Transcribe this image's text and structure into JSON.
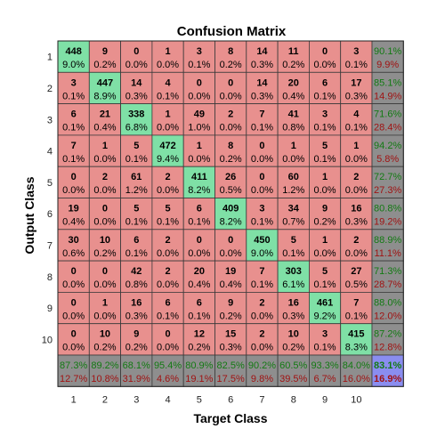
{
  "chart_data": {
    "type": "heatmap",
    "title": "Confusion Matrix",
    "xlabel": "Target Class",
    "ylabel": "Output Class",
    "classes": [
      "1",
      "2",
      "3",
      "4",
      "5",
      "6",
      "7",
      "8",
      "9",
      "10"
    ],
    "counts": [
      [
        448,
        9,
        0,
        1,
        3,
        8,
        14,
        11,
        0,
        3
      ],
      [
        3,
        447,
        14,
        4,
        0,
        0,
        14,
        20,
        6,
        17
      ],
      [
        6,
        21,
        338,
        1,
        49,
        2,
        7,
        41,
        3,
        4
      ],
      [
        7,
        1,
        5,
        472,
        1,
        8,
        0,
        1,
        5,
        1
      ],
      [
        0,
        2,
        61,
        2,
        411,
        26,
        0,
        60,
        1,
        2
      ],
      [
        19,
        0,
        5,
        5,
        6,
        409,
        3,
        34,
        9,
        16
      ],
      [
        30,
        10,
        6,
        2,
        0,
        0,
        450,
        5,
        1,
        2
      ],
      [
        0,
        0,
        42,
        2,
        20,
        19,
        7,
        303,
        5,
        27
      ],
      [
        0,
        1,
        16,
        6,
        6,
        9,
        2,
        16,
        461,
        7
      ],
      [
        0,
        10,
        9,
        0,
        12,
        15,
        2,
        10,
        3,
        415
      ]
    ],
    "percents": [
      [
        "9.0%",
        "0.2%",
        "0.0%",
        "0.0%",
        "0.1%",
        "0.2%",
        "0.3%",
        "0.2%",
        "0.0%",
        "0.1%"
      ],
      [
        "0.1%",
        "8.9%",
        "0.3%",
        "0.1%",
        "0.0%",
        "0.0%",
        "0.3%",
        "0.4%",
        "0.1%",
        "0.3%"
      ],
      [
        "0.1%",
        "0.4%",
        "6.8%",
        "0.0%",
        "1.0%",
        "0.0%",
        "0.1%",
        "0.8%",
        "0.1%",
        "0.1%"
      ],
      [
        "0.1%",
        "0.0%",
        "0.1%",
        "9.4%",
        "0.0%",
        "0.2%",
        "0.0%",
        "0.0%",
        "0.1%",
        "0.0%"
      ],
      [
        "0.0%",
        "0.0%",
        "1.2%",
        "0.0%",
        "8.2%",
        "0.5%",
        "0.0%",
        "1.2%",
        "0.0%",
        "0.0%"
      ],
      [
        "0.4%",
        "0.0%",
        "0.1%",
        "0.1%",
        "0.1%",
        "8.2%",
        "0.1%",
        "0.7%",
        "0.2%",
        "0.3%"
      ],
      [
        "0.6%",
        "0.2%",
        "0.1%",
        "0.0%",
        "0.0%",
        "0.0%",
        "9.0%",
        "0.1%",
        "0.0%",
        "0.0%"
      ],
      [
        "0.0%",
        "0.0%",
        "0.8%",
        "0.0%",
        "0.4%",
        "0.4%",
        "0.1%",
        "6.1%",
        "0.1%",
        "0.5%"
      ],
      [
        "0.0%",
        "0.0%",
        "0.3%",
        "0.1%",
        "0.1%",
        "0.2%",
        "0.0%",
        "0.3%",
        "9.2%",
        "0.1%"
      ],
      [
        "0.0%",
        "0.2%",
        "0.2%",
        "0.0%",
        "0.2%",
        "0.3%",
        "0.0%",
        "0.2%",
        "0.1%",
        "8.3%"
      ]
    ],
    "row_summary": [
      [
        "90.1%",
        "9.9%"
      ],
      [
        "85.1%",
        "14.9%"
      ],
      [
        "71.6%",
        "28.4%"
      ],
      [
        "94.2%",
        "5.8%"
      ],
      [
        "72.7%",
        "27.3%"
      ],
      [
        "80.8%",
        "19.2%"
      ],
      [
        "88.9%",
        "11.1%"
      ],
      [
        "71.3%",
        "28.7%"
      ],
      [
        "88.0%",
        "12.0%"
      ],
      [
        "87.2%",
        "12.8%"
      ]
    ],
    "col_summary": [
      [
        "87.3%",
        "12.7%"
      ],
      [
        "89.2%",
        "10.8%"
      ],
      [
        "68.1%",
        "31.9%"
      ],
      [
        "95.4%",
        "4.6%"
      ],
      [
        "80.9%",
        "19.1%"
      ],
      [
        "82.5%",
        "17.5%"
      ],
      [
        "90.2%",
        "9.8%"
      ],
      [
        "60.5%",
        "39.5%"
      ],
      [
        "93.3%",
        "6.7%"
      ],
      [
        "84.0%",
        "16.0%"
      ]
    ],
    "total": [
      "83.1%",
      "16.9%"
    ],
    "colors": {
      "diagonal": "#7fe0a6",
      "offdiagonal": "#e8908e",
      "summary": "#8e8e8e",
      "total": "#8a8df0",
      "grid": "#3a3a3a"
    }
  }
}
